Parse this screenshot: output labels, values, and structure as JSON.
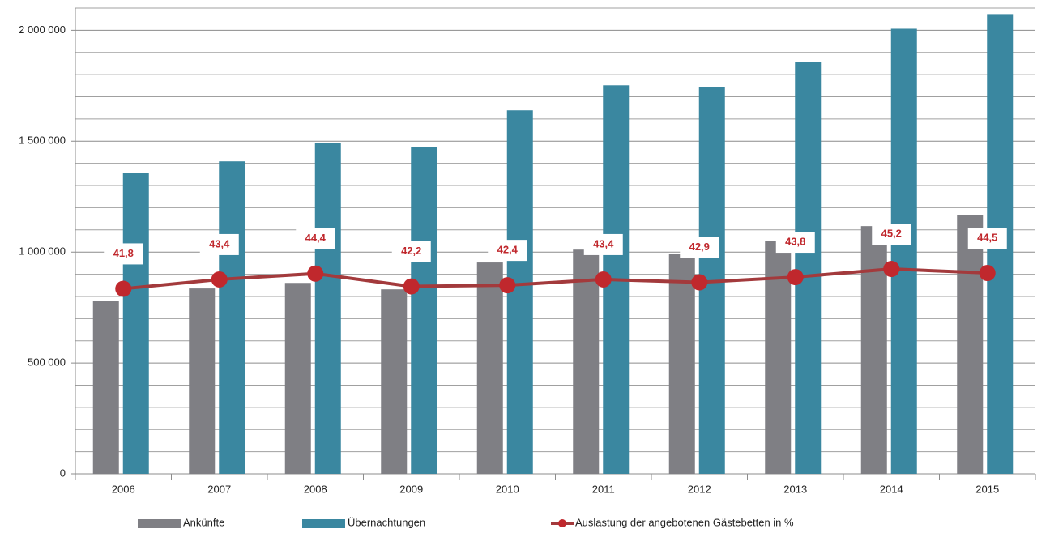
{
  "chart_data": {
    "type": "bar",
    "categories": [
      "2006",
      "2007",
      "2008",
      "2009",
      "2010",
      "2011",
      "2012",
      "2013",
      "2014",
      "2015"
    ],
    "series": [
      {
        "name": "Ankünfte",
        "color": "#7f7f84",
        "values": [
          781000,
          836000,
          861000,
          832000,
          953000,
          1011000,
          993000,
          1051000,
          1117000,
          1168000
        ]
      },
      {
        "name": "Übernachtungen",
        "color": "#3a87a0",
        "values": [
          1358000,
          1409000,
          1493000,
          1474000,
          1639000,
          1752000,
          1745000,
          1858000,
          2007000,
          2073000
        ]
      },
      {
        "name": "Auslastung der angebotenen Gästebetten in %",
        "type": "line",
        "axis": "y2",
        "color": "#a33a3c",
        "marker_color": "#c0282d",
        "values": [
          41.8,
          43.4,
          44.4,
          42.2,
          42.4,
          43.4,
          42.9,
          43.8,
          45.2,
          44.5
        ],
        "value_labels": [
          "41,8",
          "43,4",
          "44,4",
          "42,2",
          "42,4",
          "43,4",
          "42,9",
          "43,8",
          "45,2",
          "44,5"
        ]
      }
    ],
    "ylim": [
      0,
      2100000
    ],
    "yticks": [
      0,
      {
        "value": 500000,
        "label": "500 000"
      },
      {
        "value": 1000000,
        "label": "1 000 000"
      },
      {
        "value": 1500000,
        "label": "1 500 000"
      },
      {
        "value": 2000000,
        "label": "2 000 000"
      }
    ],
    "yminorticks": [
      100000,
      200000,
      300000,
      400000,
      600000,
      700000,
      800000,
      900000,
      1100000,
      1200000,
      1300000,
      1400000,
      1600000,
      1700000,
      1800000,
      1900000,
      2100000
    ],
    "y2lim": [
      10,
      90
    ],
    "grid": true,
    "legend": "bottom"
  }
}
